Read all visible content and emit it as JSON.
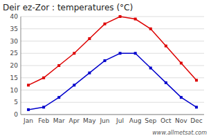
{
  "chart_data": {
    "type": "line",
    "title": "Deir ez-Zor : temperatures (°C)",
    "categories": [
      "Jan",
      "Feb",
      "Mar",
      "Apr",
      "May",
      "Jun",
      "Jul",
      "Aug",
      "Sep",
      "Oct",
      "Nov",
      "Dec"
    ],
    "series": [
      {
        "color": "#dd0000",
        "marker": "square",
        "values": [
          12,
          15,
          20,
          25,
          31,
          37,
          40,
          39,
          35,
          28,
          21,
          14
        ]
      },
      {
        "color": "#0000cc",
        "marker": "square",
        "values": [
          2,
          3,
          7,
          12,
          17,
          22,
          25,
          25,
          19,
          13,
          7,
          3
        ]
      }
    ],
    "ylim": [
      0,
      40
    ],
    "yticks": [
      0,
      5,
      10,
      15,
      20,
      25,
      30,
      35,
      40
    ],
    "grid": true,
    "annotations": [
      "www.allmetsat.com"
    ]
  }
}
